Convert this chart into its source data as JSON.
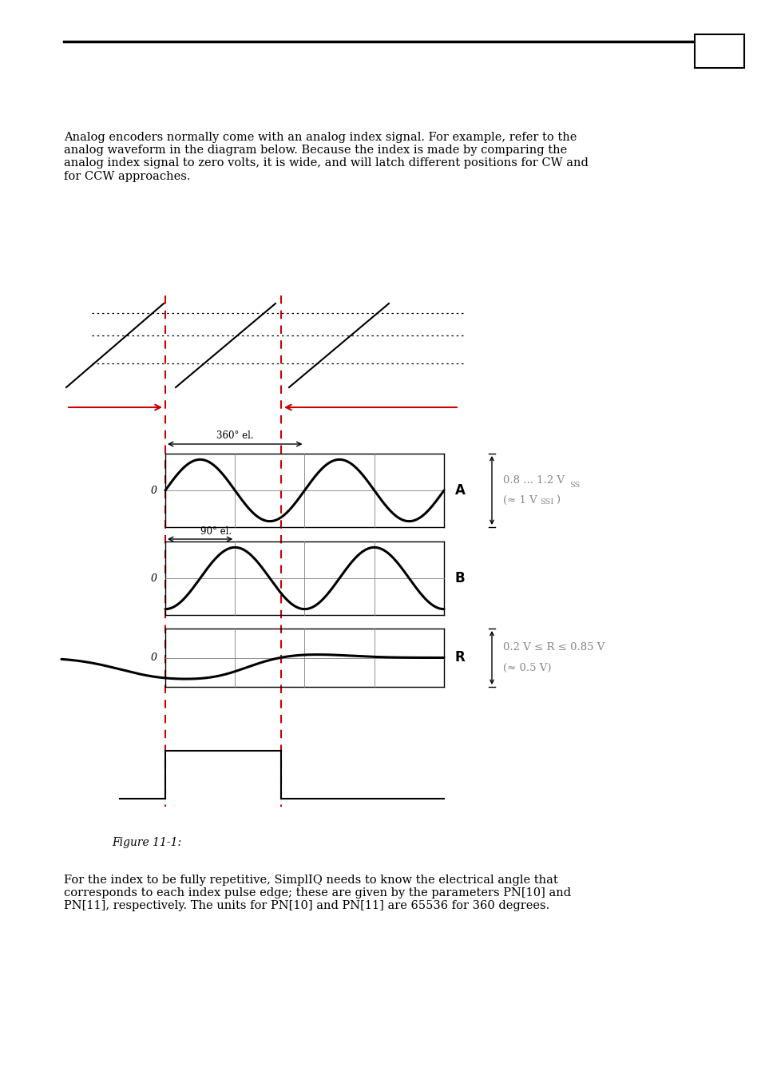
{
  "page_text_top": "Analog encoders normally come with an analog index signal. For example, refer to the\nanalog waveform in the diagram below. Because the index is made by comparing the\nanalog index signal to zero volts, it is wide, and will latch different positions for CW and\nfor CCW approaches.",
  "figure_label": "Figure 11-1:",
  "bottom_text": "For the index to be fully repetitive, SimplIQ needs to know the electrical angle that\ncorresponds to each index pulse edge; these are given by the parameters PN[10] and\nPN[11], respectively. The units for PN[10] and PN[11] are 65536 for 360 degrees.",
  "label_A": "A",
  "label_B": "B",
  "label_R": "R",
  "label_360": "360° el.",
  "label_90": "90° el.",
  "label_vss_line1": "0.8 ... 1.2 V",
  "label_vss_sub1": "SS",
  "label_vss_line2": "(≈ 1 V",
  "label_vss_sub2": "SSI",
  "label_r_line1": "0.2 V ≤ R ≤ 0.85 V",
  "label_r_line2": "(≈ 0.5 V)",
  "bg_color": "#ffffff",
  "line_color": "#000000",
  "red_color": "#cc0000",
  "gray_color": "#888888"
}
